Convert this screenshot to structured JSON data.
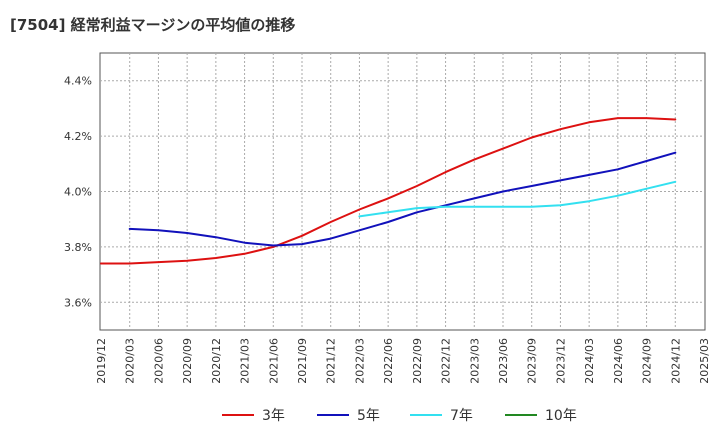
{
  "chart_data": {
    "type": "line",
    "title": "[7504]  経常利益マージンの平均値の推移",
    "xlabel": "",
    "ylabel": "",
    "ylim": [
      3.5,
      4.5
    ],
    "yticks": [
      3.6,
      3.8,
      4.0,
      4.2,
      4.4
    ],
    "ytick_labels": [
      "3.6%",
      "3.8%",
      "4.0%",
      "4.2%",
      "4.4%"
    ],
    "x_categories": [
      "2019/12",
      "2020/03",
      "2020/06",
      "2020/09",
      "2020/12",
      "2021/03",
      "2021/06",
      "2021/09",
      "2021/12",
      "2022/03",
      "2022/06",
      "2022/09",
      "2022/12",
      "2023/03",
      "2023/06",
      "2023/09",
      "2023/12",
      "2024/03",
      "2024/06",
      "2024/09",
      "2024/12",
      "2025/03"
    ],
    "grid": true,
    "legend_position": "bottom",
    "series": [
      {
        "name": "3年",
        "color": "#dd1111",
        "values": [
          3.74,
          3.74,
          3.745,
          3.75,
          3.76,
          3.775,
          3.8,
          3.84,
          3.89,
          3.935,
          3.975,
          4.02,
          4.07,
          4.115,
          4.155,
          4.195,
          4.225,
          4.25,
          4.265,
          4.265,
          4.26,
          null
        ]
      },
      {
        "name": "5年",
        "color": "#1111bb",
        "values": [
          null,
          3.865,
          3.86,
          3.85,
          3.835,
          3.815,
          3.805,
          3.81,
          3.83,
          3.86,
          3.89,
          3.925,
          3.95,
          3.975,
          4.0,
          4.02,
          4.04,
          4.06,
          4.08,
          4.11,
          4.14,
          null
        ]
      },
      {
        "name": "7年",
        "color": "#33e0f0",
        "values": [
          null,
          null,
          null,
          null,
          null,
          null,
          null,
          null,
          null,
          3.91,
          3.925,
          3.94,
          3.945,
          3.945,
          3.945,
          3.945,
          3.95,
          3.965,
          3.985,
          4.01,
          4.035,
          null
        ]
      },
      {
        "name": "10年",
        "color": "#228822",
        "values": []
      }
    ]
  }
}
